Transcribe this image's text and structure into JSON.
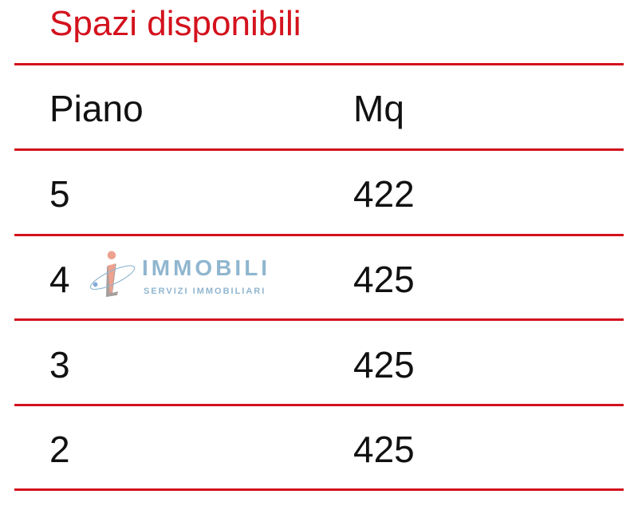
{
  "title": "Spazi disponibili",
  "table": {
    "headers": [
      "Piano",
      "Mq"
    ],
    "rows": [
      [
        "5",
        "422"
      ],
      [
        "4",
        "425"
      ],
      [
        "3",
        "425"
      ],
      [
        "2",
        "425"
      ]
    ]
  },
  "watermark": {
    "brand": "IMMOBILI",
    "tagline": "SERVIZI IMMOBILIARI",
    "icon": "i-logo-icon"
  },
  "colors": {
    "accent": "#d3121d",
    "text": "#111111",
    "watermark": "#6b9ec0"
  }
}
